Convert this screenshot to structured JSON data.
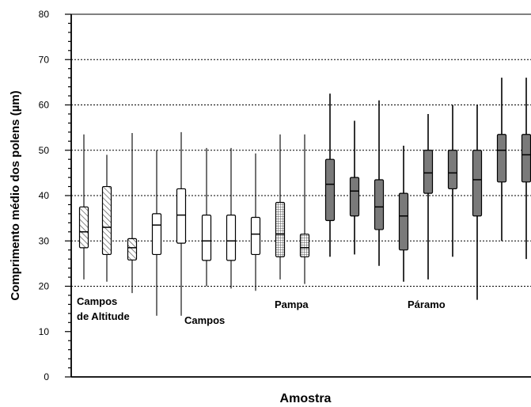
{
  "chart_data": {
    "type": "boxplot",
    "ylabel": "Comprimento médio dos polens (µm)",
    "xlabel": "Amostra",
    "ylim": [
      0,
      80
    ],
    "yticks": [
      0,
      10,
      20,
      30,
      40,
      50,
      60,
      70,
      80
    ],
    "grid": "horizontal dotted lines at 20, 30, 40, 50, 60, 70",
    "groups": [
      {
        "label_lines": [
          "Campos",
          "de Altitude"
        ],
        "fill": "diagonal-hatch"
      },
      {
        "label_lines": [
          "Campos"
        ],
        "fill": "white"
      },
      {
        "label_lines": [
          "Pampa"
        ],
        "fill": "cross-hatch"
      },
      {
        "label_lines": [
          "Páramo"
        ],
        "fill": "gray"
      }
    ],
    "boxes": [
      {
        "group": 0,
        "whisker_low": 21.5,
        "q1": 28.5,
        "median": 32,
        "q3": 37.5,
        "whisker_high": 53.5
      },
      {
        "group": 0,
        "whisker_low": 21,
        "q1": 27,
        "median": 33,
        "q3": 42,
        "whisker_high": 49
      },
      {
        "group": 0,
        "whisker_low": 18.5,
        "q1": 25.8,
        "median": 28.5,
        "q3": 30.5,
        "whisker_high": 53.8
      },
      {
        "group": 1,
        "whisker_low": 13.5,
        "q1": 27,
        "median": 33.5,
        "q3": 36,
        "whisker_high": 50
      },
      {
        "group": 1,
        "whisker_low": 13.5,
        "q1": 29.5,
        "median": 35.7,
        "q3": 41.5,
        "whisker_high": 54
      },
      {
        "group": 1,
        "whisker_low": 20,
        "q1": 25.7,
        "median": 30,
        "q3": 35.7,
        "whisker_high": 50.5
      },
      {
        "group": 1,
        "whisker_low": 19.5,
        "q1": 25.7,
        "median": 30,
        "q3": 35.7,
        "whisker_high": 50.5
      },
      {
        "group": 1,
        "whisker_low": 19,
        "q1": 27,
        "median": 31.5,
        "q3": 35.2,
        "whisker_high": 49.3
      },
      {
        "group": 2,
        "whisker_low": 21.5,
        "q1": 26.5,
        "median": 31.5,
        "q3": 38.5,
        "whisker_high": 53.5
      },
      {
        "group": 2,
        "whisker_low": 20.5,
        "q1": 26.5,
        "median": 28.5,
        "q3": 31.5,
        "whisker_high": 53.5
      },
      {
        "group": 3,
        "whisker_low": 26.5,
        "q1": 34.5,
        "median": 42.5,
        "q3": 48,
        "whisker_high": 62.5
      },
      {
        "group": 3,
        "whisker_low": 27,
        "q1": 35.5,
        "median": 41,
        "q3": 44,
        "whisker_high": 56.5
      },
      {
        "group": 3,
        "whisker_low": 24.5,
        "q1": 32.5,
        "median": 37.5,
        "q3": 43.5,
        "whisker_high": 61
      },
      {
        "group": 3,
        "whisker_low": 21,
        "q1": 28,
        "median": 35.5,
        "q3": 40.5,
        "whisker_high": 51
      },
      {
        "group": 3,
        "whisker_low": 21.5,
        "q1": 40.5,
        "median": 45,
        "q3": 50,
        "whisker_high": 58
      },
      {
        "group": 3,
        "whisker_low": 26.5,
        "q1": 41.5,
        "median": 45,
        "q3": 50,
        "whisker_high": 60
      },
      {
        "group": 3,
        "whisker_low": 17,
        "q1": 35.5,
        "median": 43.5,
        "q3": 50,
        "whisker_high": 60
      },
      {
        "group": 3,
        "whisker_low": 30,
        "q1": 43,
        "median": 50,
        "q3": 53.5,
        "whisker_high": 66
      },
      {
        "group": 3,
        "whisker_low": 26,
        "q1": 43,
        "median": 49,
        "q3": 53.5,
        "whisker_high": 66
      }
    ]
  }
}
